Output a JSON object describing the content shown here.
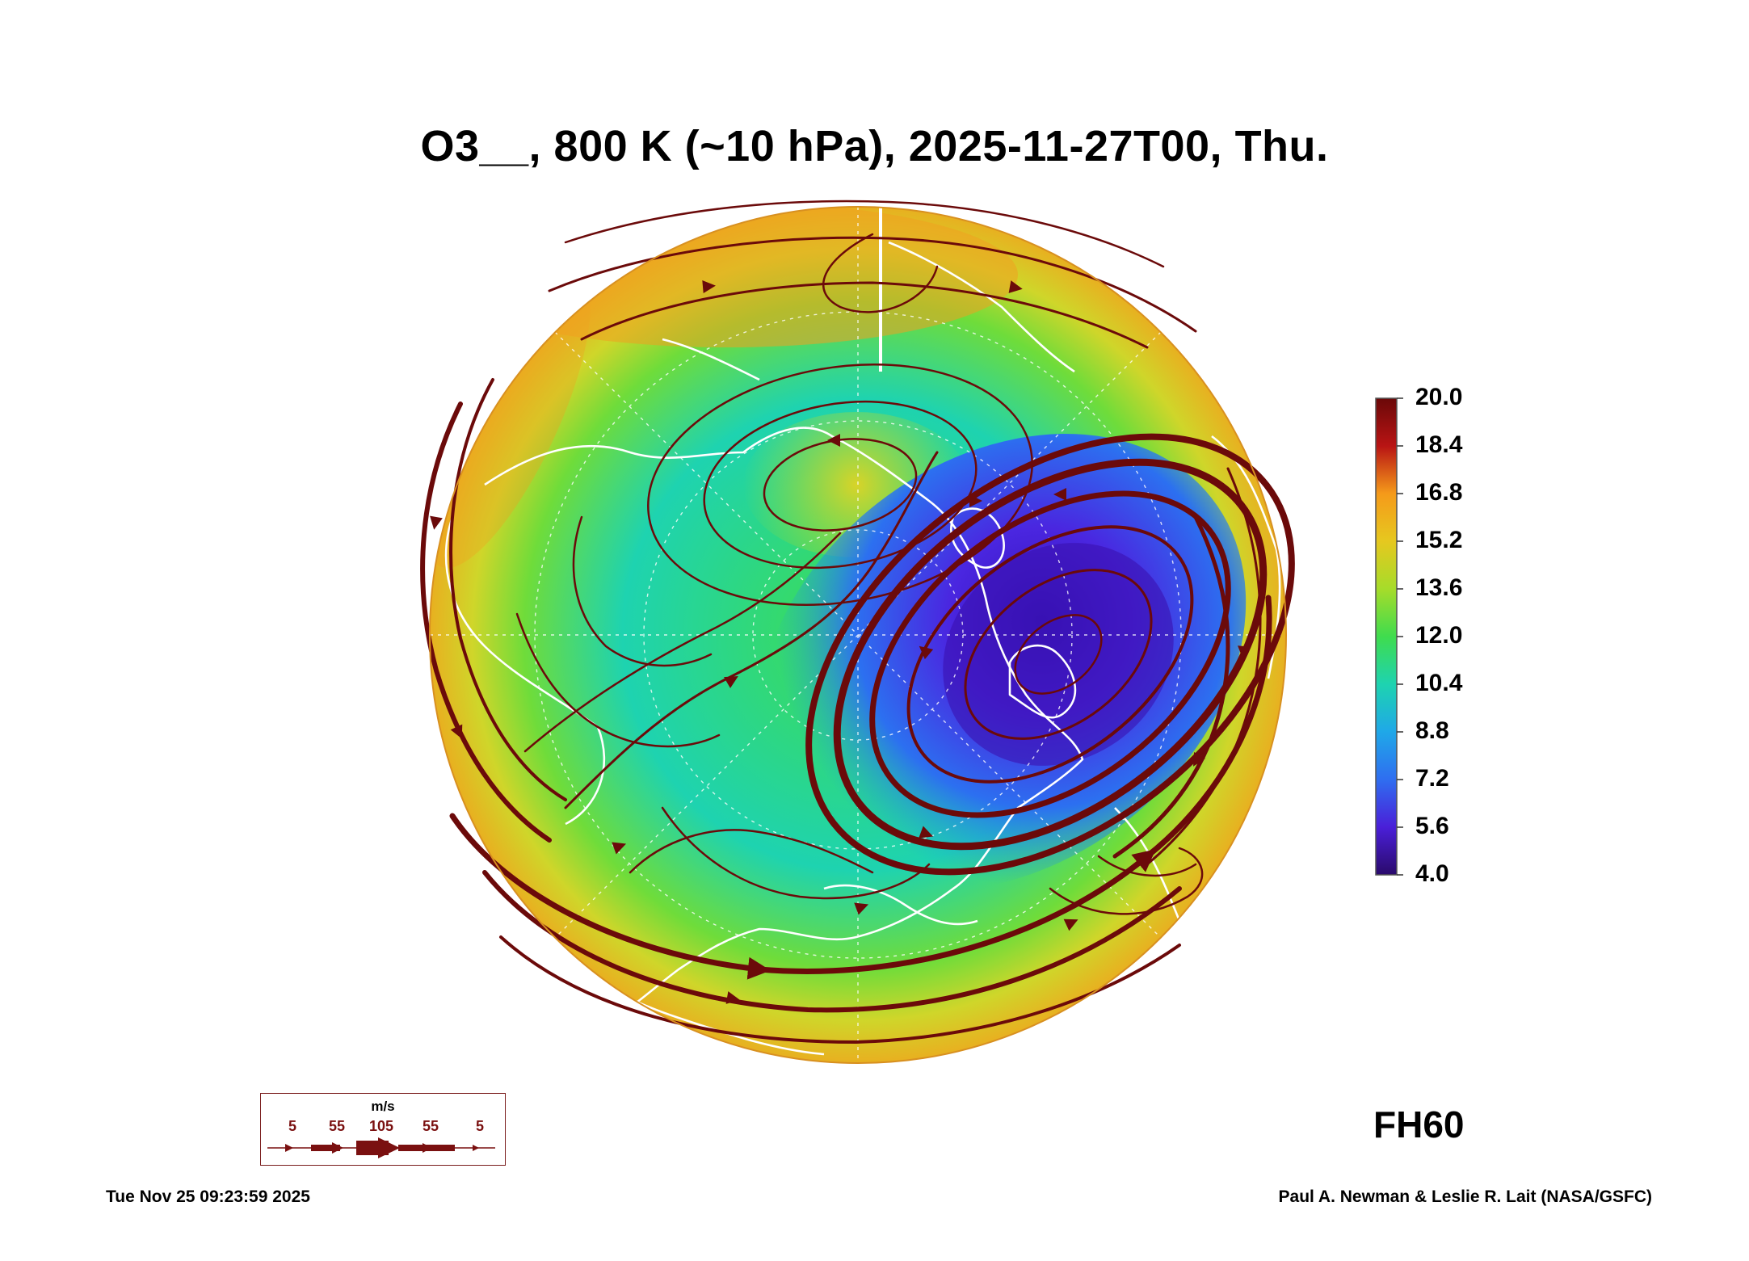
{
  "title": "O3__, 800 K (~10 hPa), 2025-11-27T00, Thu.",
  "forecast_hour": "FH60",
  "timestamp": "Tue Nov 25 09:23:59 2025",
  "credit": "Paul A. Newman & Leslie R. Lait (NASA/GSFC)",
  "colorbar": {
    "labels": [
      "20.0",
      "18.4",
      "16.8",
      "15.2",
      "13.6",
      "12.0",
      "10.4",
      "8.8",
      "7.2",
      "5.6",
      "4.0"
    ],
    "min": 4.0,
    "max": 20.0,
    "colors": [
      "#2a0a6b",
      "#4a1fd8",
      "#2f6ef0",
      "#1fa8e8",
      "#1ed3b0",
      "#3fdc4e",
      "#a6dc2a",
      "#e6c81f",
      "#f59a1a",
      "#e8501a",
      "#b81414",
      "#7a0a0a"
    ]
  },
  "wind_legend": {
    "unit": "m/s",
    "values": [
      "5",
      "55",
      "105",
      "55",
      "5"
    ]
  },
  "map": {
    "projection": "north-polar-stereographic",
    "field": "ozone mixing ratio",
    "low_center_color": "#3a14c8",
    "arrow_color": "#6b0a0a",
    "coast_color": "#ffffff"
  }
}
